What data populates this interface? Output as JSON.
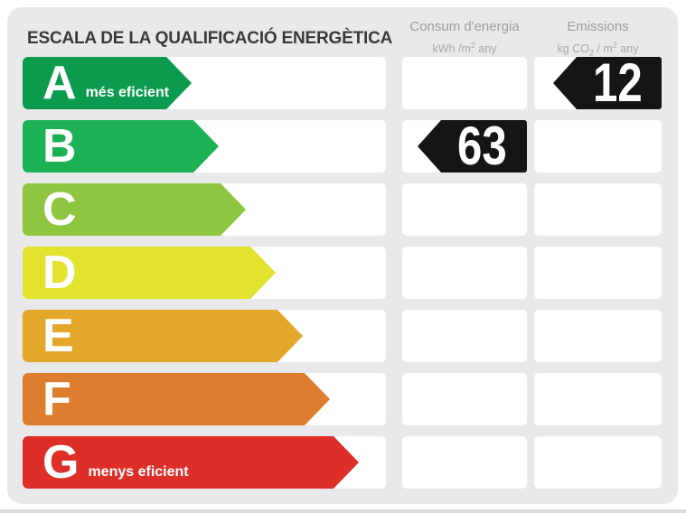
{
  "header": {
    "title": "ESCALA DE LA QUALIFICACIÓ ENERGÈTICA",
    "consum": {
      "label": "Consum d'energia",
      "unit_pre": "kWh /m",
      "unit_sup": "2",
      "unit_post": " any"
    },
    "emissions": {
      "label": "Emissions",
      "unit_pre": "kg CO",
      "unit_sub": "2",
      "unit_mid": " / m",
      "unit_sup": "2",
      "unit_post": " any"
    }
  },
  "scale": {
    "bands": [
      {
        "letter": "A",
        "note": "més eficient",
        "color": "#0c9a4e",
        "arrow_width": 187
      },
      {
        "letter": "B",
        "note": "",
        "color": "#1cb155",
        "arrow_width": 217
      },
      {
        "letter": "C",
        "note": "",
        "color": "#8ec63f",
        "arrow_width": 247
      },
      {
        "letter": "D",
        "note": "",
        "color": "#e1e32f",
        "arrow_width": 280
      },
      {
        "letter": "E",
        "note": "",
        "color": "#e3a82a",
        "arrow_width": 310
      },
      {
        "letter": "F",
        "note": "",
        "color": "#dc7e2d",
        "arrow_width": 340
      },
      {
        "letter": "G",
        "note": "menys eficient",
        "color": "#dd2e28",
        "arrow_width": 372
      }
    ]
  },
  "values": {
    "consum": {
      "value": "63",
      "band": "B",
      "arrow_color": "#151515",
      "width": 121
    },
    "emissions": {
      "value": "12",
      "band": "A",
      "arrow_color": "#151515",
      "width": 120
    }
  },
  "chart_data": {
    "type": "bar",
    "title": "ESCALA DE LA QUALIFICACIÓ ENERGÈTICA",
    "categories": [
      "A",
      "B",
      "C",
      "D",
      "E",
      "F",
      "G"
    ],
    "band_colors": [
      "#0c9a4e",
      "#1cb155",
      "#8ec63f",
      "#e1e32f",
      "#e3a82a",
      "#dc7e2d",
      "#dd2e28"
    ],
    "band_relative_lengths": [
      187,
      217,
      247,
      280,
      310,
      340,
      372
    ],
    "series": [
      {
        "name": "Consum d'energia (kWh/m2 any)",
        "band": "B",
        "value": 63
      },
      {
        "name": "Emissions (kg CO2/m2 any)",
        "band": "A",
        "value": 12
      }
    ],
    "annotations": [
      "A: més eficient",
      "G: menys eficient"
    ],
    "legend_position": "none",
    "grid": false
  }
}
